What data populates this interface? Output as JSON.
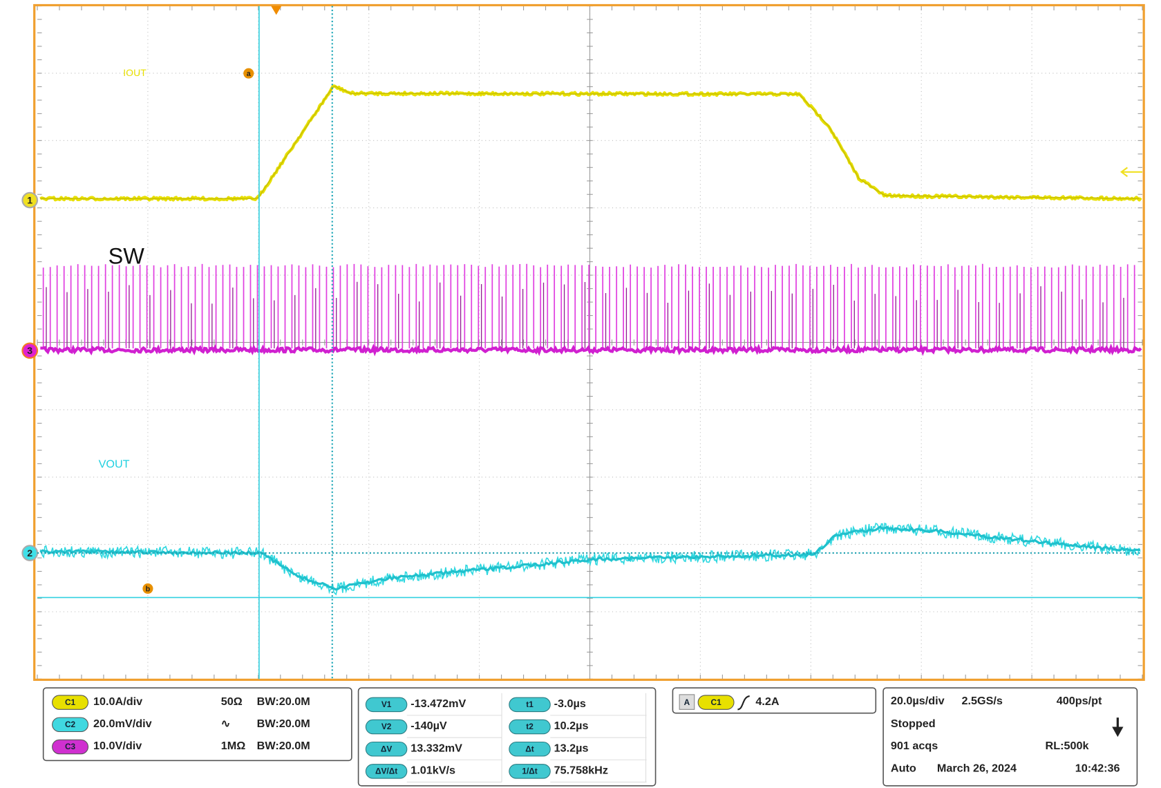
{
  "screen": {
    "labels": {
      "iout": "IOUT",
      "a": "a",
      "sw": "SW",
      "vout": "VOUT",
      "b": "b"
    },
    "channel_markers": [
      "1",
      "3",
      "2"
    ]
  },
  "channels": [
    {
      "badge": "C1",
      "scale": "10.0A/div",
      "coupling": "50Ω",
      "bandwidth": "BW:20.0M"
    },
    {
      "badge": "C2",
      "scale": "20.0mV/div",
      "coupling": "∿",
      "bandwidth": "BW:20.0M"
    },
    {
      "badge": "C3",
      "scale": "10.0V/div",
      "coupling": "1MΩ",
      "bandwidth": "BW:20.0M"
    }
  ],
  "measurements": [
    {
      "badge": "V1",
      "value": "-13.472mV"
    },
    {
      "badge": "V2",
      "value": "-140µV"
    },
    {
      "badge": "ΔV",
      "value": "13.332mV"
    },
    {
      "badge": "ΔV/Δt",
      "value": "1.01kV/s"
    },
    {
      "badge": "t1",
      "value": "-3.0µs"
    },
    {
      "badge": "t2",
      "value": "10.2µs"
    },
    {
      "badge": "Δt",
      "value": "13.2µs"
    },
    {
      "badge": "1/Δt",
      "value": "75.758kHz"
    }
  ],
  "trigger": {
    "mode_badge": "A",
    "channel_badge": "C1",
    "level": "4.2A"
  },
  "acquisition": {
    "timebase": "20.0µs/div",
    "sample_rate": "2.5GS/s",
    "resolution": "400ps/pt",
    "state": "Stopped",
    "acqs": "901 acqs",
    "record_length": "RL:500k",
    "trigger_mode": "Auto",
    "date": "March 26, 2024",
    "time": "10:42:36"
  }
}
